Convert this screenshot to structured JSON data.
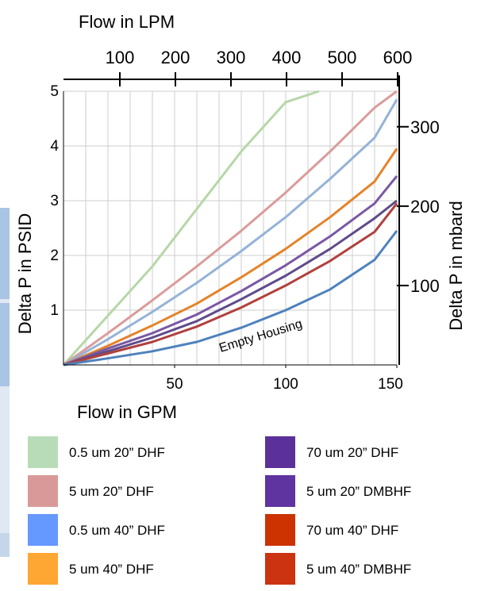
{
  "chart_data": {
    "type": "line",
    "title": "",
    "top_axis_label": "Flow in LPM",
    "top_ticks": [
      "100",
      "200",
      "300",
      "400",
      "500",
      "600"
    ],
    "top_tick_values": [
      100,
      200,
      300,
      400,
      500,
      600
    ],
    "xlabel": "Flow in GPM",
    "x_ticks": [
      "50",
      "100",
      "150"
    ],
    "x_tick_values": [
      50,
      100,
      150
    ],
    "xlim": [
      0,
      150
    ],
    "ylabel": "Delta P in PSID",
    "y_ticks": [
      "1",
      "2",
      "3",
      "4",
      "5"
    ],
    "y_tick_values": [
      1,
      2,
      3,
      4,
      5
    ],
    "ylim": [
      0,
      5
    ],
    "right_axis_label": "Delta P in mbard",
    "right_ticks": [
      "100",
      "200",
      "300"
    ],
    "right_tick_values": [
      100,
      200,
      300
    ],
    "grid": "vertical",
    "annotation": "Empty Housing",
    "series": [
      {
        "name": "0.5 um 20” DHF",
        "color": "#b6d7a8",
        "x": [
          0,
          20,
          40,
          60,
          80,
          100,
          115
        ],
        "y": [
          0,
          0.9,
          1.8,
          2.85,
          3.9,
          4.8,
          5.0
        ]
      },
      {
        "name": "5 um 20” DHF",
        "color": "#da9c9b",
        "x": [
          0,
          20,
          40,
          60,
          80,
          100,
          120,
          140,
          150
        ],
        "y": [
          0,
          0.58,
          1.18,
          1.8,
          2.45,
          3.15,
          3.9,
          4.7,
          5.0
        ]
      },
      {
        "name": "0.5 um 40” DHF",
        "color": "#95b3d7",
        "x": [
          0,
          20,
          40,
          60,
          80,
          100,
          120,
          140,
          150
        ],
        "y": [
          0,
          0.47,
          0.97,
          1.5,
          2.08,
          2.7,
          3.4,
          4.15,
          4.85
        ]
      },
      {
        "name": "5 um 40” DHF",
        "color": "#e5832a",
        "x": [
          0,
          20,
          40,
          60,
          80,
          100,
          120,
          140,
          150
        ],
        "y": [
          0,
          0.35,
          0.72,
          1.12,
          1.6,
          2.12,
          2.7,
          3.35,
          3.95
        ]
      },
      {
        "name": "70 um 20” DHF",
        "color": "#7a58a4",
        "x": [
          0,
          20,
          40,
          60,
          80,
          100,
          120,
          140,
          150
        ],
        "y": [
          0,
          0.3,
          0.58,
          0.92,
          1.35,
          1.82,
          2.35,
          2.95,
          3.45
        ]
      },
      {
        "name": "5 um 20” DMBHF",
        "color": "#5f4b8b",
        "x": [
          0,
          20,
          40,
          60,
          80,
          100,
          120,
          140,
          150
        ],
        "y": [
          0,
          0.25,
          0.5,
          0.8,
          1.2,
          1.63,
          2.12,
          2.68,
          3.0
        ]
      },
      {
        "name": "70 um 40” DHF",
        "color": "#b0413e",
        "x": [
          0,
          20,
          40,
          60,
          80,
          100,
          120,
          140,
          150
        ],
        "y": [
          0,
          0.21,
          0.42,
          0.7,
          1.05,
          1.45,
          1.9,
          2.43,
          2.95
        ]
      },
      {
        "name": "5 um 40” DMBHF",
        "color": "#4f81bd",
        "x": [
          0,
          20,
          40,
          60,
          80,
          100,
          120,
          140,
          150
        ],
        "y": [
          0,
          0.12,
          0.25,
          0.42,
          0.68,
          1.0,
          1.38,
          1.92,
          2.45
        ]
      }
    ]
  },
  "legend": [
    {
      "label": "0.5 um 20” DHF",
      "color": "#b9dcb8"
    },
    {
      "label": "5 um 20” DHF",
      "color": "#da9999"
    },
    {
      "label": "0.5 um 40” DHF",
      "color": "#6699ff"
    },
    {
      "label": "5 um 40” DHF",
      "color": "#ffa633"
    },
    {
      "label": "70 um 20” DHF",
      "color": "#5b3199"
    },
    {
      "label": "5 um 20” DMBHF",
      "color": "#5f33a0"
    },
    {
      "label": "70 um 40” DHF",
      "color": "#cc3300"
    },
    {
      "label": "5 um 40” DMBHF",
      "color": "#cc3311"
    }
  ],
  "left_strip_colors": [
    "#a9c4e4",
    "#dfe8f3",
    "#a9c4e4",
    "#dfe8f3",
    "#c6d6ea"
  ]
}
